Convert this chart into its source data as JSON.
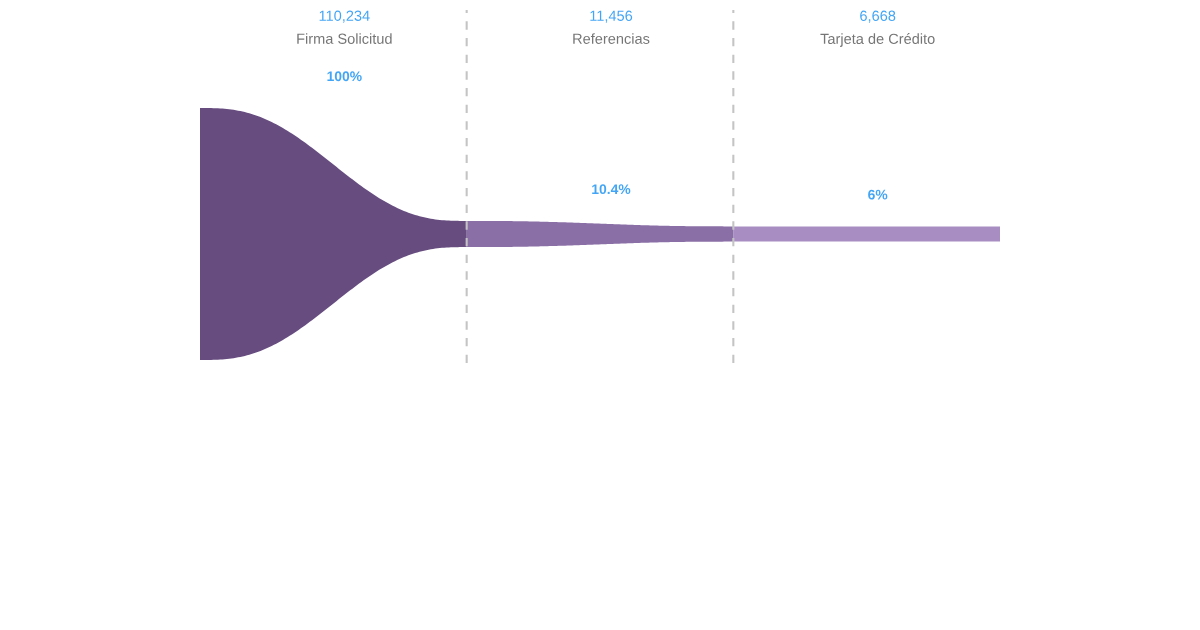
{
  "chart_data": {
    "type": "other",
    "categories": [
      "Firma Solicitud",
      "Referencias",
      "Tarjeta de Crédito"
    ],
    "values": [
      110234,
      11456,
      6668
    ],
    "value_labels": [
      "110,234",
      "11,456",
      "6,668"
    ],
    "annotations": [
      "100%",
      "10.4%",
      "6%"
    ],
    "colors": [
      "#674c80",
      "#8a6fa6",
      "#a88dc2"
    ]
  }
}
